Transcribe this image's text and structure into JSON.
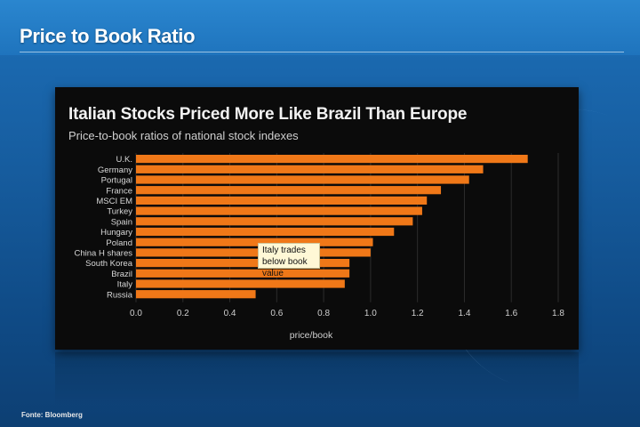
{
  "slide": {
    "title": "Price to Book Ratio",
    "source": "Fonte: Bloomberg"
  },
  "colors": {
    "bar": "#f07818",
    "panel_bg": "#0b0b0b",
    "background": "#1a66ad"
  },
  "callout": {
    "line1": "Italy trades",
    "line2": "below book value"
  },
  "chart_data": {
    "type": "bar",
    "orientation": "horizontal",
    "title": "Italian Stocks Priced More Like Brazil Than Europe",
    "subtitle": "Price-to-book ratios of national stock indexes",
    "xlabel": "price/book",
    "ylabel": "",
    "xlim": [
      0,
      1.8
    ],
    "xticks": [
      "0.0",
      "0.2",
      "0.4",
      "0.6",
      "0.8",
      "1.0",
      "1.2",
      "1.4",
      "1.6",
      "1.8"
    ],
    "grid": true,
    "categories": [
      "U.K.",
      "Germany",
      "Portugal",
      "France",
      "MSCI EM",
      "Turkey",
      "Spain",
      "Hungary",
      "Poland",
      "China H shares",
      "South Korea",
      "Brazil",
      "Italy",
      "Russia"
    ],
    "values": [
      1.67,
      1.48,
      1.42,
      1.3,
      1.24,
      1.22,
      1.18,
      1.1,
      1.01,
      1.0,
      0.91,
      0.91,
      0.89,
      0.51
    ]
  }
}
